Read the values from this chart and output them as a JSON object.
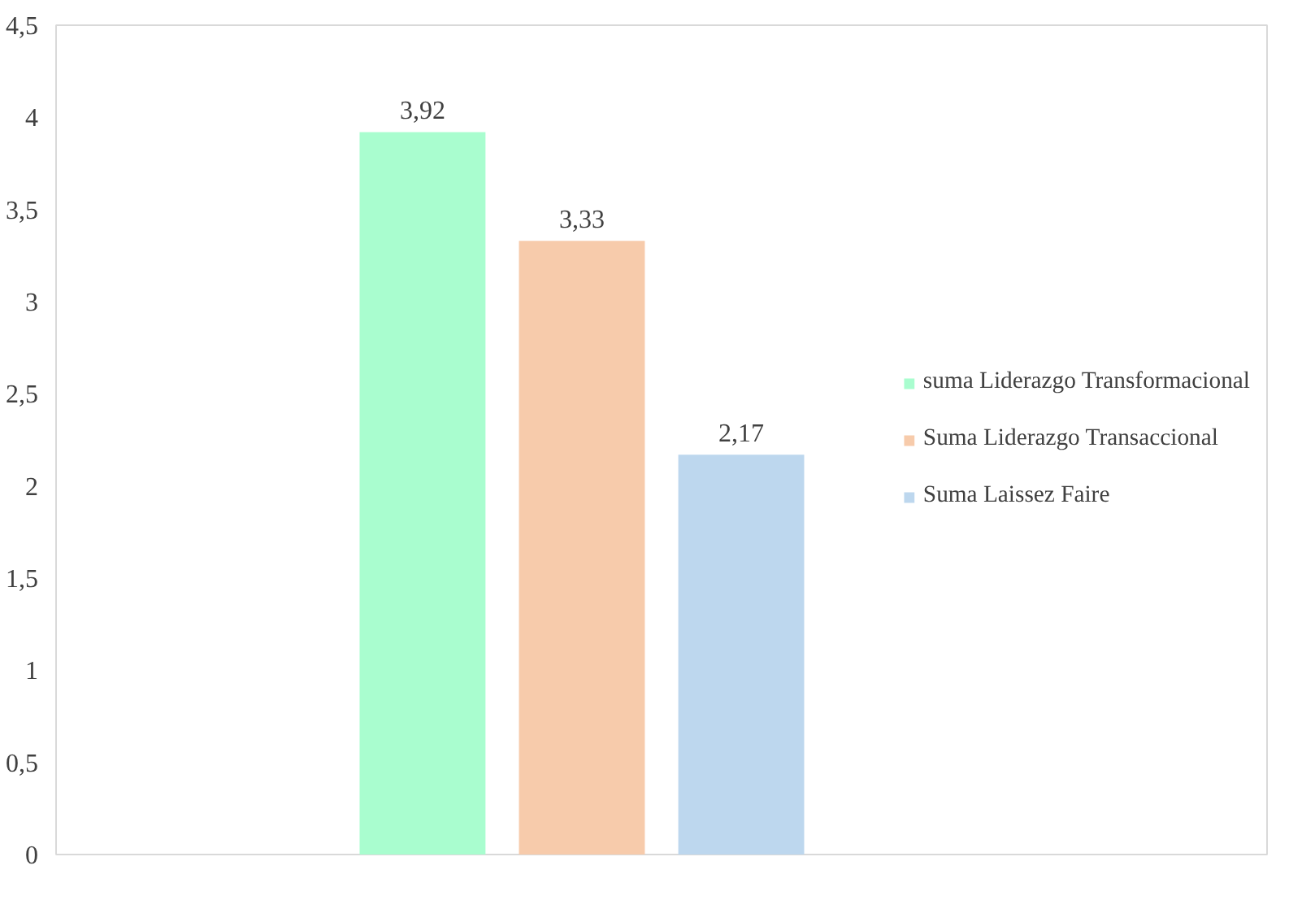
{
  "chart_data": {
    "type": "bar",
    "categories": [
      null
    ],
    "series": [
      {
        "name": "suma Liderazgo Transformacional",
        "color": "#a9fdcf",
        "values": [
          3.92
        ],
        "value_labels": [
          "3,92"
        ]
      },
      {
        "name": "Suma Liderazgo Transaccional",
        "color": "#f7cbab",
        "values": [
          3.33
        ],
        "value_labels": [
          "3,33"
        ]
      },
      {
        "name": "Suma Laissez Faire",
        "color": "#bdd7ee",
        "values": [
          2.17
        ],
        "value_labels": [
          "2,17"
        ]
      }
    ],
    "ylim": [
      0,
      4.5
    ],
    "yticks": [
      0,
      {
        "value": 0.5,
        "label": "0,5"
      },
      1,
      {
        "value": 1.5,
        "label": "1,5"
      },
      2,
      {
        "value": 2.5,
        "label": "2,5"
      },
      3,
      {
        "value": 3.5,
        "label": "3,5"
      },
      4,
      {
        "value": 4.5,
        "label": "4,5"
      }
    ],
    "grid": false,
    "legend": "right",
    "tick_labels": "y"
  }
}
